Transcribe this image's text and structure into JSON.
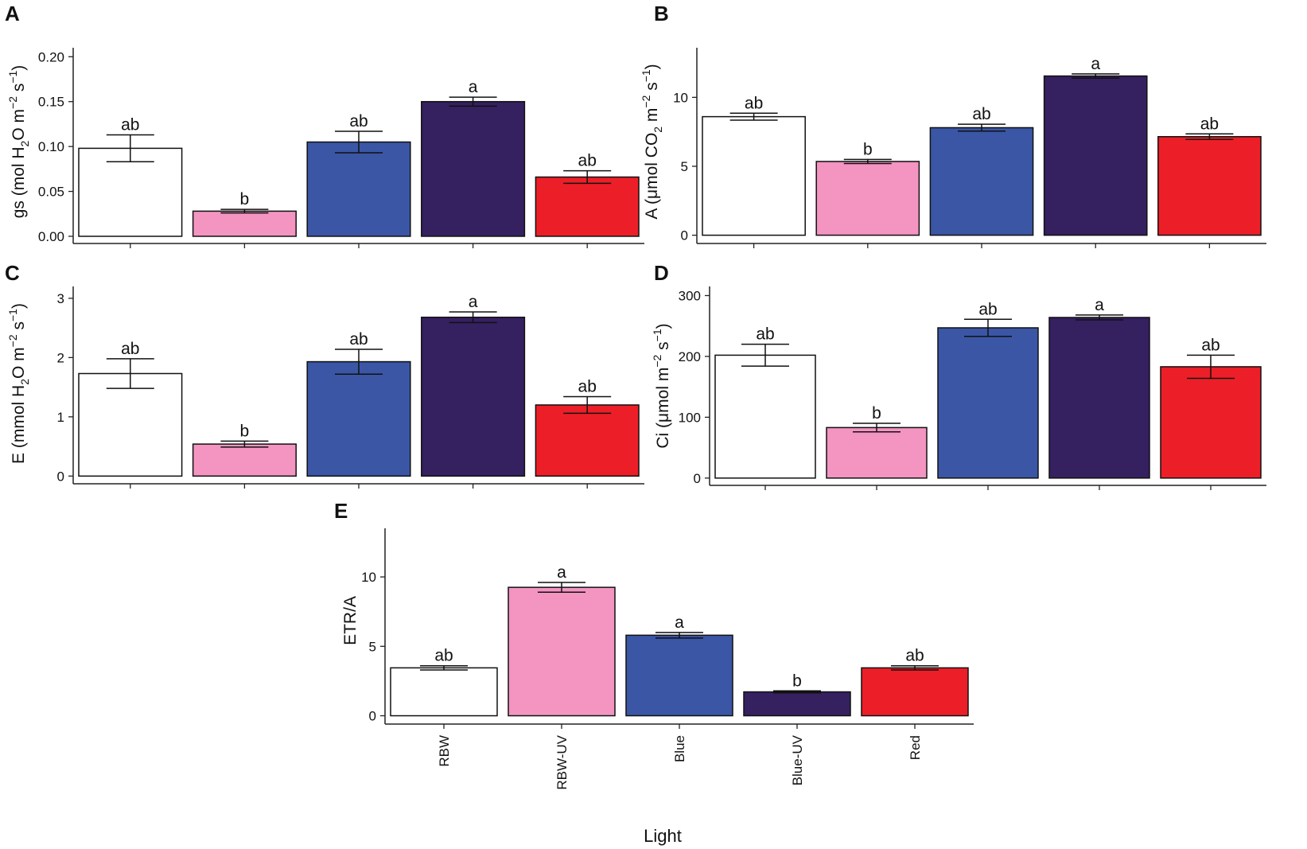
{
  "x_axis_title": "Light",
  "categories": [
    "RBW",
    "RBW-UV",
    "Blue",
    "Blue-UV",
    "Red"
  ],
  "colors": [
    "#ffffff",
    "#f394c1",
    "#3a56a5",
    "#352060",
    "#ec1f28"
  ],
  "panel_letters": [
    "A",
    "B",
    "C",
    "D",
    "E"
  ],
  "ylabel_parts": {
    "A": {
      "pre": "gs (mol H",
      "s1": "2",
      "mid": "O m",
      "e1": "−2",
      "mid2": " s",
      "e2": "−1",
      "post": ")"
    },
    "B": {
      "pre": "A (μmol CO",
      "s1": "2",
      "mid": " m",
      "e1": "−2",
      "mid2": " s",
      "e2": "−1",
      "post": ")"
    },
    "C": {
      "pre": "E (mmol H",
      "s1": "2",
      "mid": "O m",
      "e1": "−2",
      "mid2": " s",
      "e2": "−1",
      "post": ")"
    },
    "D": {
      "pre": "Ci (μmol m",
      "e1": "−2",
      "mid2": " s",
      "e2": "−1",
      "post": ")"
    },
    "E": {
      "pre": "ETR/A"
    }
  },
  "chart_data": [
    {
      "panel": "A",
      "type": "bar",
      "ylabel": "gs (mol H2O m-2 s-1)",
      "categories": [
        "RBW",
        "RBW-UV",
        "Blue",
        "Blue-UV",
        "Red"
      ],
      "values": [
        0.098,
        0.028,
        0.105,
        0.15,
        0.066
      ],
      "errors": [
        0.015,
        0.002,
        0.012,
        0.005,
        0.007
      ],
      "letters": [
        "ab",
        "b",
        "ab",
        "a",
        "ab"
      ],
      "ylim": [
        -0.008,
        0.21
      ],
      "ticks": [
        0.0,
        0.05,
        0.1,
        0.15,
        0.2
      ],
      "tick_labels": [
        "0.00",
        "0.05",
        "0.10",
        "0.15",
        "0.20"
      ]
    },
    {
      "panel": "B",
      "type": "bar",
      "ylabel": "A (μmol CO2 m-2 s-1)",
      "categories": [
        "RBW",
        "RBW-UV",
        "Blue",
        "Blue-UV",
        "Red"
      ],
      "values": [
        8.6,
        5.35,
        7.8,
        11.55,
        7.15
      ],
      "errors": [
        0.25,
        0.15,
        0.25,
        0.15,
        0.2
      ],
      "letters": [
        "ab",
        "b",
        "ab",
        "a",
        "ab"
      ],
      "ylim": [
        -0.6,
        13.6
      ],
      "ticks": [
        0,
        5,
        10
      ],
      "tick_labels": [
        "0",
        "5",
        "10"
      ]
    },
    {
      "panel": "C",
      "type": "bar",
      "ylabel": "E (mmol H2O m-2 s-1)",
      "categories": [
        "RBW",
        "RBW-UV",
        "Blue",
        "Blue-UV",
        "Red"
      ],
      "values": [
        1.73,
        0.54,
        1.93,
        2.68,
        1.2
      ],
      "errors": [
        0.25,
        0.05,
        0.21,
        0.09,
        0.14
      ],
      "letters": [
        "ab",
        "b",
        "ab",
        "a",
        "ab"
      ],
      "ylim": [
        -0.13,
        3.2
      ],
      "ticks": [
        0,
        1,
        2,
        3
      ],
      "tick_labels": [
        "0",
        "1",
        "2",
        "3"
      ]
    },
    {
      "panel": "D",
      "type": "bar",
      "ylabel": "Ci (μmol m-2 s-1)",
      "categories": [
        "RBW",
        "RBW-UV",
        "Blue",
        "Blue-UV",
        "Red"
      ],
      "values": [
        202,
        83,
        247,
        264,
        183
      ],
      "errors": [
        18,
        7,
        14,
        4,
        19
      ],
      "letters": [
        "ab",
        "b",
        "ab",
        "a",
        "ab"
      ],
      "ylim": [
        -12,
        315
      ],
      "ticks": [
        0,
        100,
        200,
        300
      ],
      "tick_labels": [
        "0",
        "100",
        "200",
        "300"
      ]
    },
    {
      "panel": "E",
      "type": "bar",
      "ylabel": "ETR/A",
      "xlabel": "Light",
      "categories": [
        "RBW",
        "RBW-UV",
        "Blue",
        "Blue-UV",
        "Red"
      ],
      "values": [
        3.45,
        9.25,
        5.8,
        1.72,
        3.45
      ],
      "errors": [
        0.15,
        0.35,
        0.2,
        0.07,
        0.15
      ],
      "letters": [
        "ab",
        "a",
        "a",
        "b",
        "ab"
      ],
      "ylim": [
        -0.6,
        13.5
      ],
      "ticks": [
        0,
        5,
        10
      ],
      "tick_labels": [
        "0",
        "5",
        "10"
      ]
    }
  ]
}
